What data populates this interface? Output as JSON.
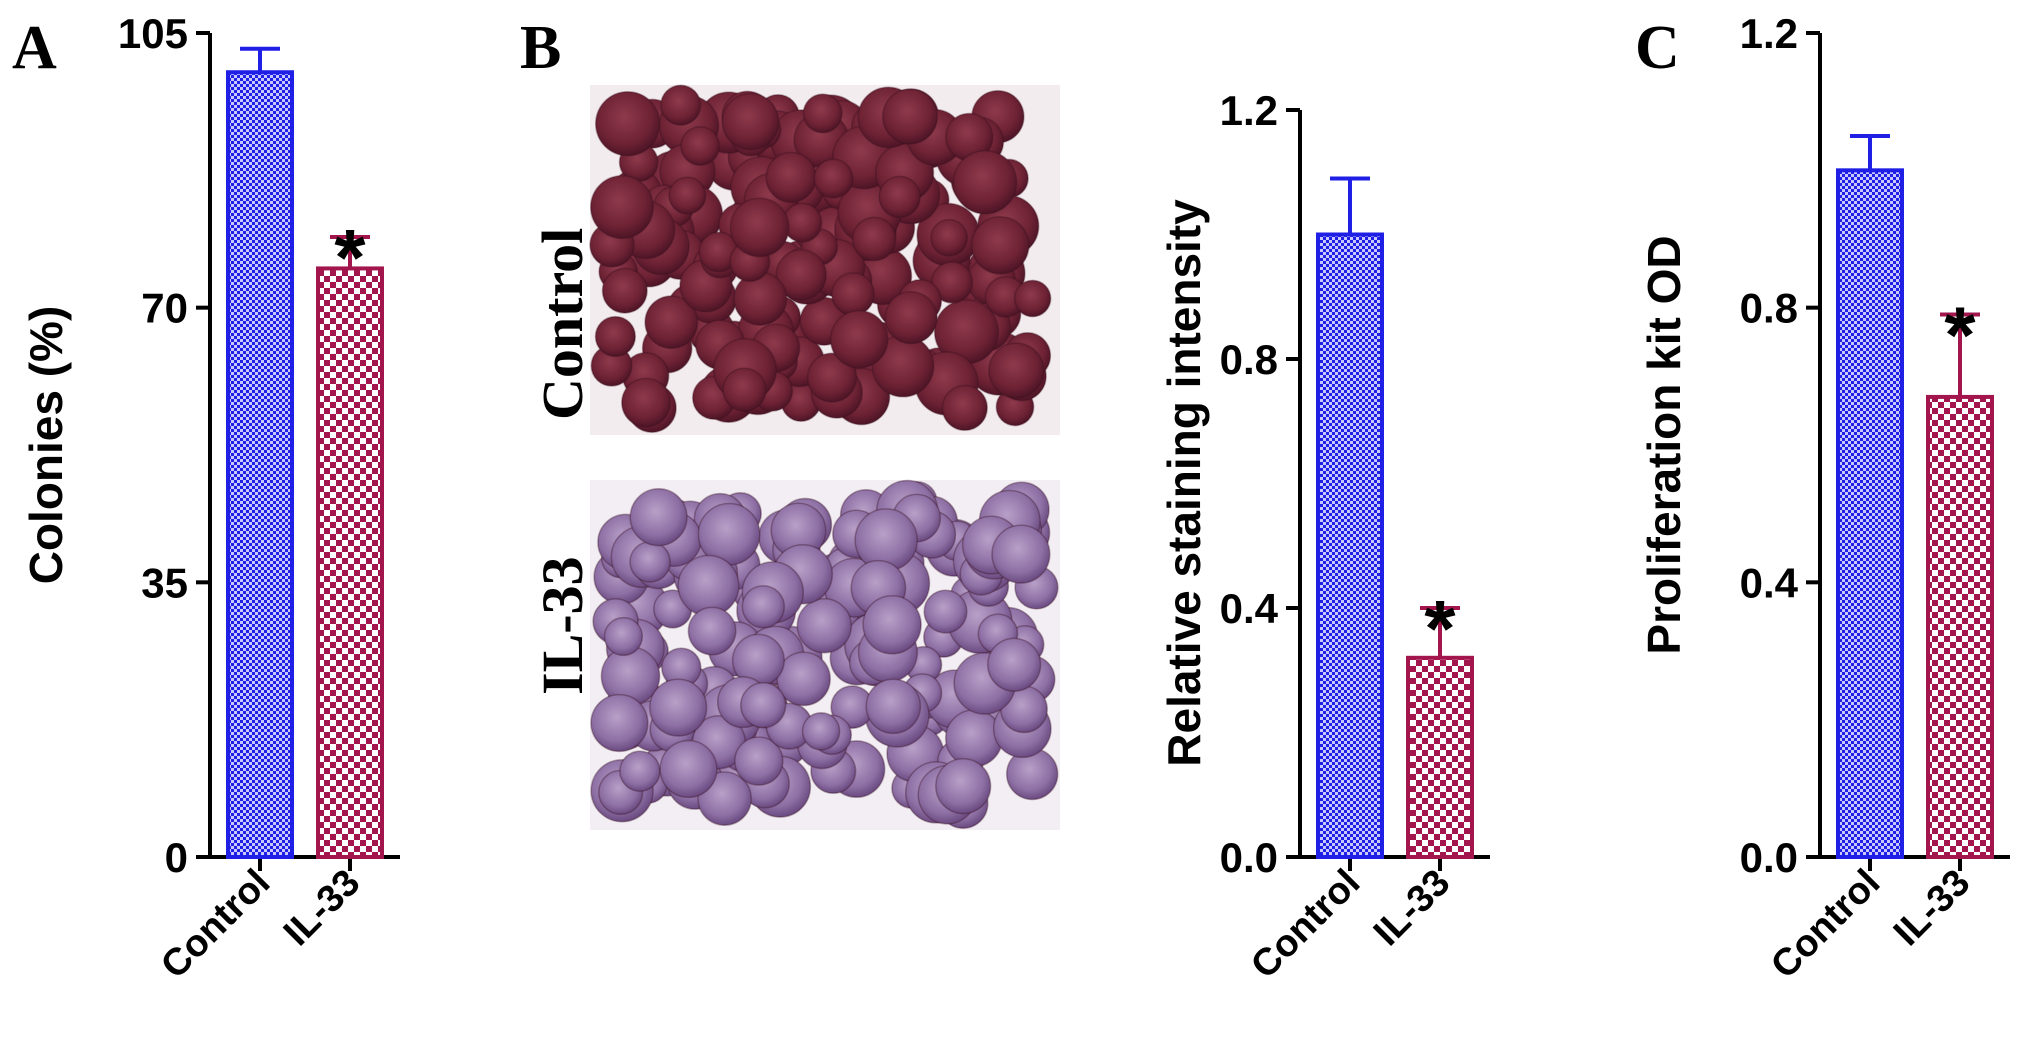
{
  "panels": {
    "A": {
      "letter": "A"
    },
    "B": {
      "letter": "B",
      "image_labels": [
        "Control",
        "IL-33"
      ]
    },
    "C": {
      "letter": "C"
    }
  },
  "colors": {
    "control": "#1f1fe6",
    "il33": "#a3154d",
    "axis": "#000000",
    "stain_control": "#7a2a3c",
    "stain_il33": "#8a6a9c"
  },
  "chart_data": [
    {
      "panel": "A",
      "type": "bar",
      "categories": [
        "Control",
        "IL-33"
      ],
      "values": [
        100,
        75
      ],
      "errors": [
        3,
        4
      ],
      "significance": [
        "",
        "*"
      ],
      "ylabel": "Colonies (%)",
      "ylim": [
        0,
        105
      ],
      "yticks": [
        "0",
        "35",
        "70",
        "105"
      ]
    },
    {
      "panel": "B",
      "type": "bar",
      "categories": [
        "Control",
        "IL-33"
      ],
      "values": [
        1.0,
        0.32
      ],
      "errors": [
        0.09,
        0.08
      ],
      "significance": [
        "",
        "*"
      ],
      "ylabel": "Relative staining intensity",
      "ylim": [
        0,
        1.2
      ],
      "yticks": [
        "0.0",
        "0.4",
        "0.8",
        "1.2"
      ]
    },
    {
      "panel": "C",
      "type": "bar",
      "categories": [
        "Control",
        "IL-33"
      ],
      "values": [
        1.0,
        0.67
      ],
      "errors": [
        0.05,
        0.12
      ],
      "significance": [
        "",
        "*"
      ],
      "ylabel": "Proliferation kit OD",
      "ylim": [
        0,
        1.2
      ],
      "yticks": [
        "0.0",
        "0.4",
        "0.8",
        "1.2"
      ]
    }
  ]
}
